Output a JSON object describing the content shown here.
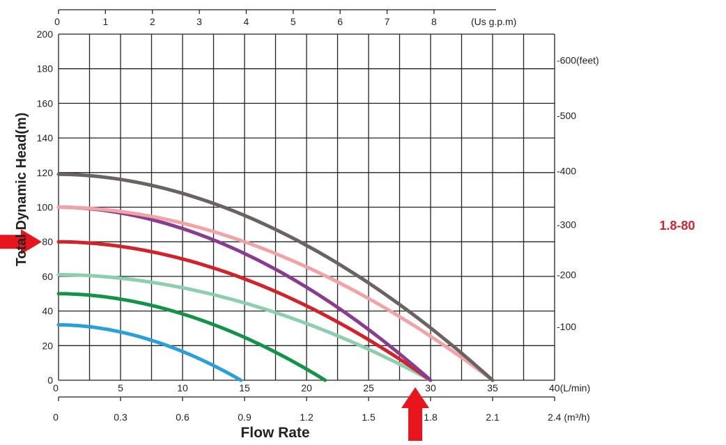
{
  "chart_data": {
    "type": "line",
    "model_label": "1.8-80",
    "model_label_color": "#d2232a",
    "xlabel": "Flow Rate",
    "ylabel": "Total Dynamic Head(m)",
    "x_lmin": {
      "unit_label": "40(L/min)",
      "ticks": [
        "0",
        "5",
        "10",
        "15",
        "20",
        "25",
        "30",
        "35"
      ],
      "range": [
        0,
        40
      ]
    },
    "x_m3h": {
      "unit_label": "2.4 (m³/h)",
      "ticks": [
        "0",
        "0.3",
        "0.6",
        "0.9",
        "1.2",
        "1.5",
        "1.8",
        "2.1"
      ],
      "range": [
        0,
        2.4
      ]
    },
    "x_gpm": {
      "unit_label": "(Us g.p.m)",
      "ticks": [
        "0",
        "1",
        "2",
        "3",
        "4",
        "5",
        "6",
        "7",
        "8"
      ],
      "range": [
        0,
        10.57
      ]
    },
    "y_m": {
      "ticks": [
        "0",
        "20",
        "40",
        "60",
        "80",
        "100",
        "120",
        "140",
        "160",
        "180",
        "200"
      ],
      "range": [
        0,
        200
      ]
    },
    "y_feet": {
      "ticks": [
        {
          "label": "-100",
          "m": 31
        },
        {
          "label": "-200",
          "m": 61
        },
        {
          "label": "-300",
          "m": 90
        },
        {
          "label": "-400",
          "m": 121
        },
        {
          "label": "-500",
          "m": 153
        },
        {
          "label": "-600(feet)",
          "m": 185
        }
      ]
    },
    "series": [
      {
        "color": "#2a9fd8",
        "shutoff_head": 32,
        "max_flow": 14.7
      },
      {
        "color": "#119447",
        "shutoff_head": 50,
        "max_flow": 21.5
      },
      {
        "color": "#8ccfae",
        "shutoff_head": 61,
        "max_flow": 30
      },
      {
        "color": "#d2232a",
        "shutoff_head": 80,
        "max_flow": 30,
        "highlight": true
      },
      {
        "color": "#8a3d8f",
        "shutoff_head": 100,
        "max_flow": 30
      },
      {
        "color": "#f2a3a6",
        "shutoff_head": 100,
        "max_flow": 35
      },
      {
        "color": "#6b6262",
        "shutoff_head": 119,
        "max_flow": 35
      }
    ],
    "highlight_markers": [
      {
        "type": "arrow-right",
        "axis": "y",
        "value": 80,
        "color": "#e8151c"
      },
      {
        "type": "arrow-up",
        "axis": "x",
        "value": 30,
        "color": "#e8151c"
      }
    ],
    "grid": true
  }
}
